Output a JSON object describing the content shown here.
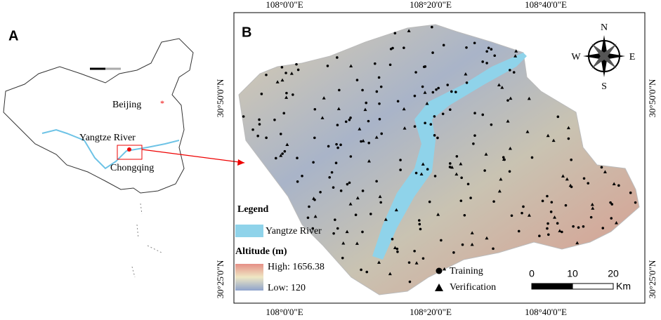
{
  "panel_a": {
    "label": "A",
    "beijing": "Beijing",
    "river": "Yangtze River",
    "city": "Chongqing"
  },
  "panel_b": {
    "label": "B",
    "top_ticks": [
      "108°0'0\"E",
      "108°20'0\"E",
      "108°40'0\"E"
    ],
    "bottom_ticks": [
      "108°0'0\"E",
      "108°20'0\"E",
      "108°40'0\"E"
    ],
    "left_ticks": [
      "30°50'0\"N",
      "30°25'0\"N"
    ],
    "right_ticks": [
      "30°50'0\"N",
      "30°25'0\"N"
    ],
    "compass": {
      "n": "N",
      "e": "E",
      "s": "S",
      "w": "W"
    },
    "legend": {
      "title": "Legend",
      "river": "Yangtze River",
      "altitude_title": "Altitude (m)",
      "high": "High: 1656.38",
      "low": "Low: 120"
    },
    "points": {
      "training": "Training",
      "verification": "Verification"
    },
    "scale": {
      "ticks": [
        "0",
        "10",
        "20"
      ],
      "unit": "Km"
    }
  }
}
